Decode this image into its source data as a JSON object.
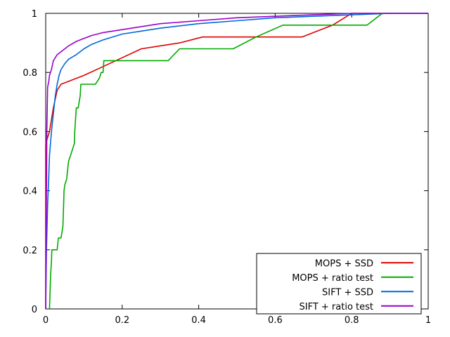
{
  "chart_data": {
    "type": "line",
    "title": "",
    "xlabel": "",
    "ylabel": "",
    "xlim": [
      0,
      1
    ],
    "ylim": [
      0,
      1
    ],
    "xticks": [
      0,
      0.2,
      0.4,
      0.6,
      0.8,
      1
    ],
    "yticks": [
      0,
      0.2,
      0.4,
      0.6,
      0.8,
      1
    ],
    "xtick_labels": [
      "0",
      "0.2",
      "0.4",
      "0.6",
      "0.8",
      "1"
    ],
    "ytick_labels": [
      "0",
      "0.2",
      "0.4",
      "0.6",
      "0.8",
      "1"
    ],
    "grid": false,
    "legend_position": "bottom-right",
    "series": [
      {
        "name": "MOPS + SSD",
        "color": "#dd0000",
        "x": [
          0,
          0.0,
          0.01,
          0.02,
          0.03,
          0.04,
          0.1,
          0.15,
          0.2,
          0.25,
          0.3,
          0.35,
          0.41,
          0.5,
          0.6,
          0.67,
          0.75,
          0.8,
          0.85,
          0.9,
          1.0
        ],
        "y": [
          0,
          0.56,
          0.6,
          0.68,
          0.74,
          0.76,
          0.79,
          0.82,
          0.85,
          0.88,
          0.89,
          0.9,
          0.92,
          0.92,
          0.92,
          0.92,
          0.96,
          1.0,
          1.0,
          1.0,
          1.0
        ]
      },
      {
        "name": "MOPS + ratio test",
        "color": "#00aa00",
        "x": [
          0.01,
          0.012,
          0.013,
          0.015,
          0.016,
          0.03,
          0.033,
          0.04,
          0.045,
          0.048,
          0.05,
          0.055,
          0.058,
          0.06,
          0.065,
          0.07,
          0.075,
          0.076,
          0.08,
          0.085,
          0.09,
          0.092,
          0.13,
          0.14,
          0.145,
          0.15,
          0.152,
          0.2,
          0.32,
          0.35,
          0.49,
          0.55,
          0.62,
          0.84,
          0.88,
          1.0
        ],
        "y": [
          0.0,
          0.08,
          0.12,
          0.16,
          0.2,
          0.2,
          0.24,
          0.24,
          0.28,
          0.4,
          0.42,
          0.44,
          0.48,
          0.5,
          0.52,
          0.54,
          0.56,
          0.6,
          0.68,
          0.68,
          0.72,
          0.76,
          0.76,
          0.78,
          0.8,
          0.8,
          0.84,
          0.84,
          0.84,
          0.88,
          0.88,
          0.92,
          0.96,
          0.96,
          1.0,
          1.0
        ]
      },
      {
        "name": "SIFT + SSD",
        "color": "#0066dd",
        "x": [
          0.0,
          0.002,
          0.005,
          0.008,
          0.01,
          0.015,
          0.02,
          0.025,
          0.03,
          0.035,
          0.04,
          0.05,
          0.06,
          0.08,
          0.1,
          0.12,
          0.15,
          0.2,
          0.25,
          0.3,
          0.4,
          0.5,
          0.6,
          0.7,
          0.8,
          0.9,
          1.0
        ],
        "y": [
          0.0,
          0.2,
          0.35,
          0.45,
          0.52,
          0.6,
          0.66,
          0.72,
          0.76,
          0.79,
          0.81,
          0.83,
          0.845,
          0.86,
          0.88,
          0.895,
          0.91,
          0.93,
          0.94,
          0.95,
          0.965,
          0.975,
          0.985,
          0.99,
          0.995,
          1.0,
          1.0
        ]
      },
      {
        "name": "SIFT + ratio test",
        "color": "#9900cc",
        "x": [
          0.0,
          0.001,
          0.003,
          0.005,
          0.008,
          0.01,
          0.015,
          0.02,
          0.03,
          0.04,
          0.05,
          0.06,
          0.08,
          0.1,
          0.12,
          0.15,
          0.2,
          0.25,
          0.3,
          0.4,
          0.5,
          0.6,
          0.7,
          0.8,
          0.9,
          1.0
        ],
        "y": [
          0.0,
          0.18,
          0.6,
          0.75,
          0.77,
          0.79,
          0.81,
          0.84,
          0.86,
          0.87,
          0.88,
          0.89,
          0.905,
          0.915,
          0.925,
          0.935,
          0.945,
          0.955,
          0.965,
          0.975,
          0.985,
          0.99,
          0.995,
          1.0,
          1.0,
          1.0
        ]
      }
    ]
  }
}
